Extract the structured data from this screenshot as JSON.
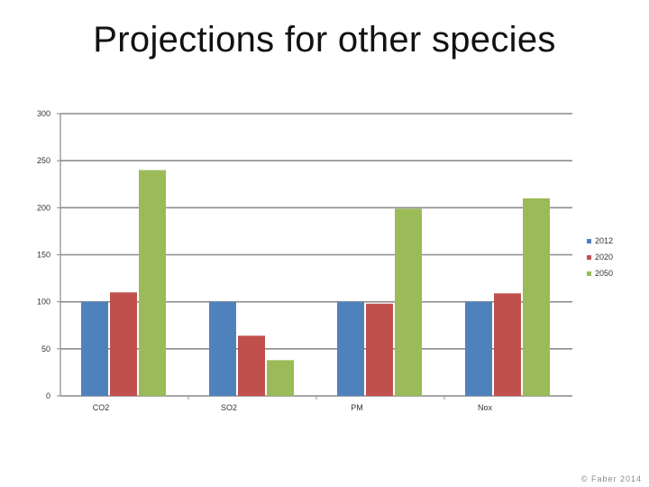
{
  "slide": {
    "title": "Projections for other species",
    "footer": "© Faber 2014"
  },
  "chart_data": {
    "type": "bar",
    "title": "Projections for other species",
    "categories": [
      "CO2",
      "SO2",
      "PM",
      "Nox"
    ],
    "series": [
      {
        "name": "2012",
        "values": [
          100,
          100,
          100,
          100
        ],
        "color": "#4F81BD"
      },
      {
        "name": "2020",
        "values": [
          110,
          64,
          98,
          109
        ],
        "color": "#C0504D"
      },
      {
        "name": "2050",
        "values": [
          240,
          38,
          199,
          210
        ],
        "color": "#9BBB59"
      }
    ],
    "ylim": [
      0,
      300
    ],
    "yticks": [
      0,
      50,
      100,
      150,
      200,
      250,
      300
    ],
    "grid": true,
    "legend": "right",
    "xlabel": "",
    "ylabel": ""
  }
}
